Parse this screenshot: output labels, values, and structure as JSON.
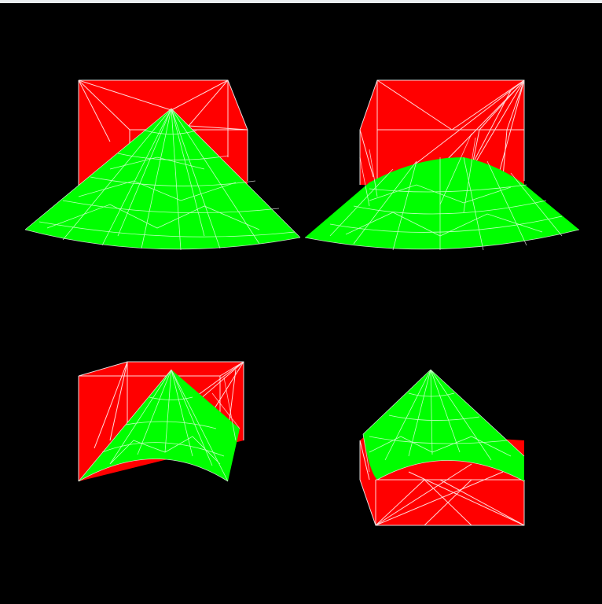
{
  "colors": {
    "background": "#000000",
    "box_fill": "#ff0000",
    "cone_fill": "#00ff00",
    "wireframe": "#ffffff",
    "titlebar": "#e9ecef"
  },
  "views": [
    {
      "name": "view-top-left",
      "icon": "render-view"
    },
    {
      "name": "view-top-right",
      "icon": "render-view"
    },
    {
      "name": "view-bottom-left",
      "icon": "render-view"
    },
    {
      "name": "view-bottom-right",
      "icon": "render-view"
    }
  ]
}
